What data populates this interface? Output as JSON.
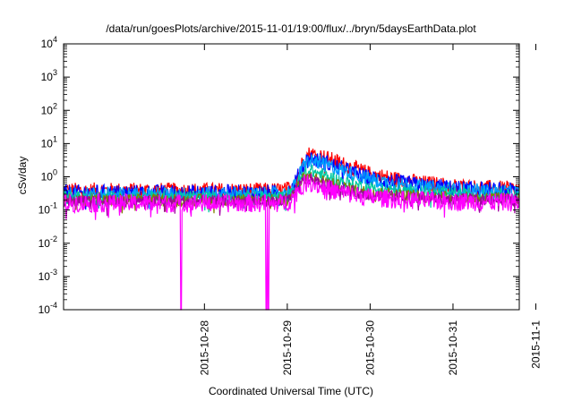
{
  "chart_data": {
    "type": "line",
    "title": "/data/run/goesPlots/archive/2015-11-01/19:00/flux/../bryn/5daysEarthData.plot",
    "xlabel": "Coordinated Universal Time (UTC)",
    "ylabel": "cSv/day",
    "y_scale": "log",
    "ylim": [
      0.0001,
      10000
    ],
    "xlim": [
      -1.7,
      3.8
    ],
    "x_ticks": [
      {
        "x": 0,
        "label": "2015-10-28"
      },
      {
        "x": 1,
        "label": "2015-10-29"
      },
      {
        "x": 2,
        "label": "2015-10-30"
      },
      {
        "x": 3,
        "label": "2015-10-31"
      },
      {
        "x": 4,
        "label": "2015-11-1"
      }
    ],
    "y_ticks": [
      {
        "value": 0.0001,
        "base": "10",
        "exp": "-4"
      },
      {
        "value": 0.001,
        "base": "10",
        "exp": "-3"
      },
      {
        "value": 0.01,
        "base": "10",
        "exp": "-2"
      },
      {
        "value": 0.1,
        "base": "10",
        "exp": "-1"
      },
      {
        "value": 1,
        "base": "10",
        "exp": "0"
      },
      {
        "value": 10,
        "base": "10",
        "exp": "1"
      },
      {
        "value": 100,
        "base": "10",
        "exp": "2"
      },
      {
        "value": 1000,
        "base": "10",
        "exp": "3"
      },
      {
        "value": 10000,
        "base": "10",
        "exp": "4"
      }
    ],
    "grid": false,
    "legend": "none",
    "series": [
      {
        "color": "#ff0000",
        "noise": 0.25,
        "drops": [],
        "points": [
          [
            -1.7,
            0.38
          ],
          [
            0.95,
            0.38
          ],
          [
            1.05,
            0.45
          ],
          [
            1.12,
            1.0
          ],
          [
            1.2,
            3.5
          ],
          [
            1.27,
            5.0
          ],
          [
            1.4,
            4.2
          ],
          [
            1.6,
            2.8
          ],
          [
            1.8,
            1.8
          ],
          [
            2.0,
            1.2
          ],
          [
            2.3,
            0.85
          ],
          [
            2.6,
            0.65
          ],
          [
            3.0,
            0.52
          ],
          [
            3.4,
            0.45
          ],
          [
            3.8,
            0.42
          ]
        ]
      },
      {
        "color": "#0000ff",
        "noise": 0.25,
        "drops": [],
        "points": [
          [
            -1.7,
            0.33
          ],
          [
            0.95,
            0.33
          ],
          [
            1.05,
            0.4
          ],
          [
            1.12,
            0.9
          ],
          [
            1.2,
            2.6
          ],
          [
            1.27,
            3.6
          ],
          [
            1.4,
            3.0
          ],
          [
            1.6,
            2.0
          ],
          [
            1.8,
            1.3
          ],
          [
            2.0,
            0.9
          ],
          [
            2.3,
            0.68
          ],
          [
            2.6,
            0.55
          ],
          [
            3.0,
            0.45
          ],
          [
            3.4,
            0.4
          ],
          [
            3.8,
            0.37
          ]
        ]
      },
      {
        "color": "#00a0ff",
        "noise": 0.22,
        "drops": [],
        "points": [
          [
            -1.7,
            0.3
          ],
          [
            0.95,
            0.3
          ],
          [
            1.05,
            0.36
          ],
          [
            1.12,
            0.8
          ],
          [
            1.2,
            2.3
          ],
          [
            1.27,
            3.2
          ],
          [
            1.4,
            2.6
          ],
          [
            1.6,
            1.8
          ],
          [
            1.8,
            1.2
          ],
          [
            2.0,
            0.85
          ],
          [
            2.3,
            0.62
          ],
          [
            2.6,
            0.5
          ],
          [
            3.0,
            0.42
          ],
          [
            3.4,
            0.37
          ],
          [
            3.8,
            0.34
          ]
        ]
      },
      {
        "color": "#00c8a0",
        "noise": 0.2,
        "drops": [],
        "points": [
          [
            -1.7,
            0.24
          ],
          [
            0.95,
            0.24
          ],
          [
            1.05,
            0.3
          ],
          [
            1.12,
            0.6
          ],
          [
            1.2,
            1.3
          ],
          [
            1.27,
            1.6
          ],
          [
            1.4,
            1.2
          ],
          [
            1.6,
            0.8
          ],
          [
            1.8,
            0.58
          ],
          [
            2.0,
            0.46
          ],
          [
            2.4,
            0.36
          ],
          [
            3.0,
            0.3
          ],
          [
            3.8,
            0.27
          ]
        ]
      },
      {
        "color": "#808000",
        "noise": 0.18,
        "drops": [],
        "points": [
          [
            -1.7,
            0.2
          ],
          [
            0.95,
            0.2
          ],
          [
            1.05,
            0.26
          ],
          [
            1.12,
            0.5
          ],
          [
            1.2,
            0.9
          ],
          [
            1.27,
            1.05
          ],
          [
            1.4,
            0.8
          ],
          [
            1.6,
            0.55
          ],
          [
            1.8,
            0.42
          ],
          [
            2.0,
            0.35
          ],
          [
            2.4,
            0.28
          ],
          [
            3.0,
            0.24
          ],
          [
            3.8,
            0.22
          ]
        ]
      },
      {
        "color": "#a000a0",
        "noise": 0.18,
        "drops": [],
        "points": [
          [
            -1.7,
            0.18
          ],
          [
            0.95,
            0.18
          ],
          [
            1.05,
            0.23
          ],
          [
            1.12,
            0.42
          ],
          [
            1.2,
            0.75
          ],
          [
            1.27,
            0.85
          ],
          [
            1.4,
            0.65
          ],
          [
            1.6,
            0.45
          ],
          [
            1.8,
            0.35
          ],
          [
            2.0,
            0.29
          ],
          [
            2.4,
            0.24
          ],
          [
            3.0,
            0.21
          ],
          [
            3.8,
            0.2
          ]
        ]
      },
      {
        "color": "#ff00ff",
        "noise": 0.28,
        "drops": [
          -0.28,
          0.75,
          0.77
        ],
        "points": [
          [
            -1.7,
            0.16
          ],
          [
            0.95,
            0.16
          ],
          [
            1.05,
            0.2
          ],
          [
            1.12,
            0.35
          ],
          [
            1.2,
            0.6
          ],
          [
            1.27,
            0.7
          ],
          [
            1.4,
            0.52
          ],
          [
            1.6,
            0.36
          ],
          [
            1.8,
            0.28
          ],
          [
            2.0,
            0.24
          ],
          [
            2.4,
            0.2
          ],
          [
            3.0,
            0.18
          ],
          [
            3.8,
            0.17
          ]
        ]
      }
    ]
  }
}
